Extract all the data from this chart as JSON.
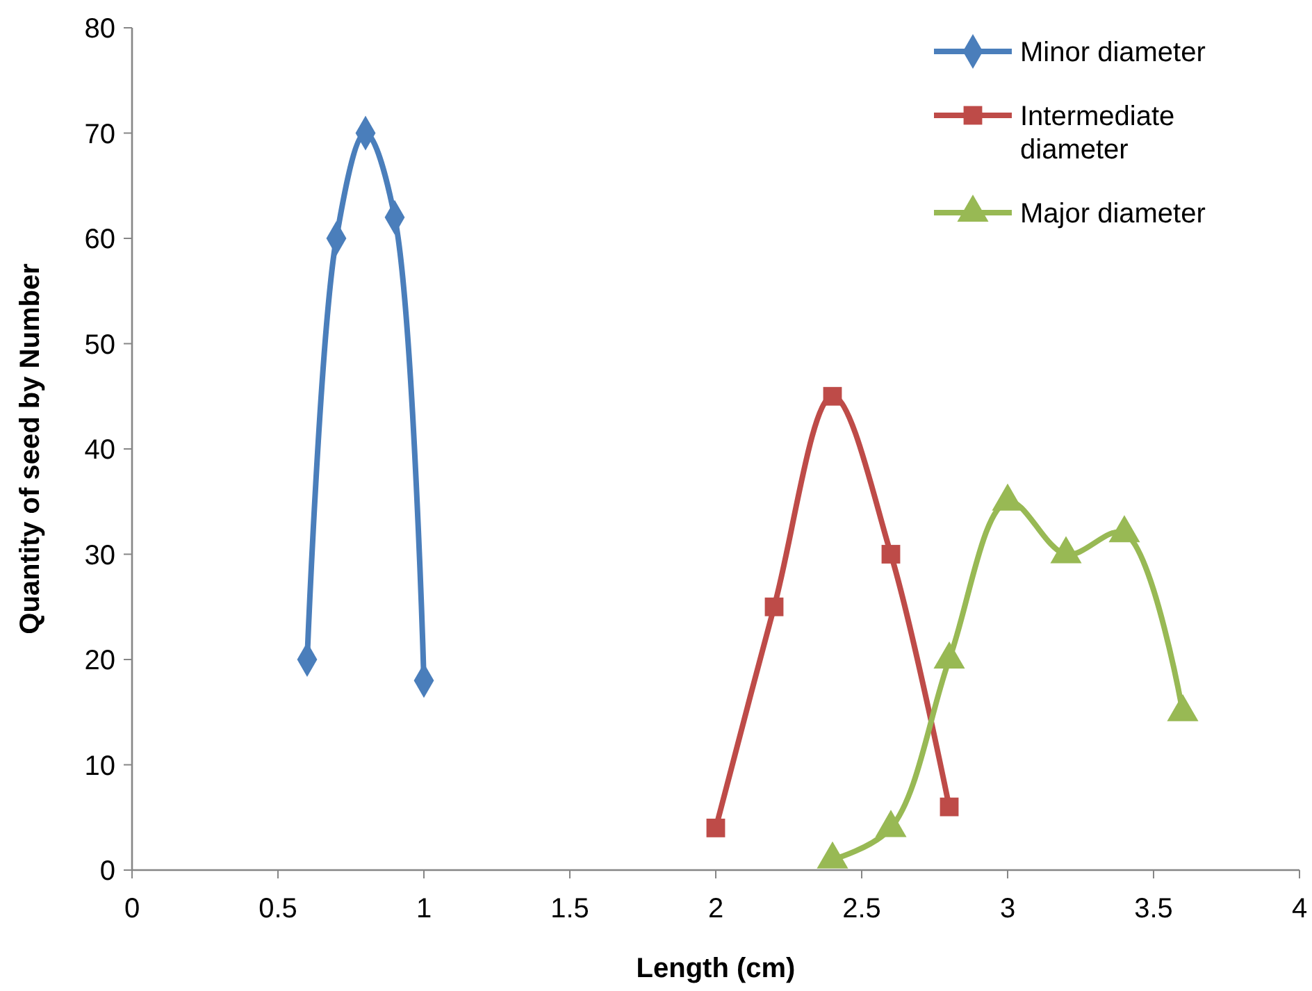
{
  "chart_data": {
    "type": "line",
    "xlabel": "Length (cm)",
    "ylabel": "Quantity of seed by Number",
    "xlim": [
      0,
      4
    ],
    "xticks": [
      0,
      0.5,
      1,
      1.5,
      2,
      2.5,
      3,
      3.5,
      4
    ],
    "ylim": [
      0,
      80
    ],
    "yticks": [
      0,
      10,
      20,
      30,
      40,
      50,
      60,
      70,
      80
    ],
    "grid": false,
    "legend": "top right",
    "series": [
      {
        "name": "Minor diameter",
        "color": "#4a7ebb",
        "marker": "diamond",
        "x": [
          0.6,
          0.7,
          0.8,
          0.9,
          1.0
        ],
        "values": [
          20,
          60,
          70,
          62,
          18
        ]
      },
      {
        "name": "Intermediate diameter",
        "color": "#be4b48",
        "marker": "square",
        "x": [
          2.0,
          2.2,
          2.4,
          2.6,
          2.8
        ],
        "values": [
          4,
          25,
          45,
          30,
          6
        ]
      },
      {
        "name": "Major diameter",
        "color": "#98b954",
        "marker": "triangle",
        "x": [
          2.4,
          2.6,
          2.8,
          3.0,
          3.2,
          3.4,
          3.6
        ],
        "values": [
          1,
          4,
          20,
          35,
          30,
          32,
          15
        ]
      }
    ]
  }
}
